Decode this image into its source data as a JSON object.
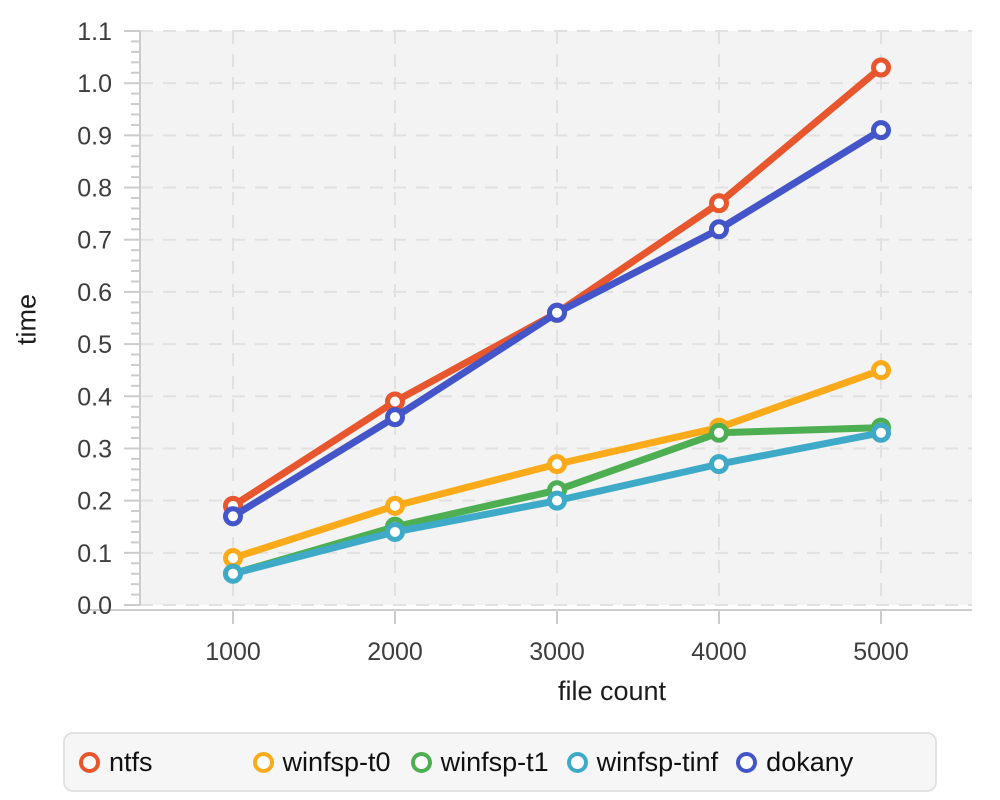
{
  "chart_data": {
    "type": "line",
    "title": "",
    "xlabel": "file count",
    "ylabel": "time",
    "x": [
      1000,
      2000,
      3000,
      4000,
      5000
    ],
    "xtick_labels": [
      "1000",
      "2000",
      "3000",
      "4000",
      "5000"
    ],
    "ylim": [
      0,
      1.1
    ],
    "ytick_step": 0.1,
    "ytick_labels": [
      "0.0",
      "0.1",
      "0.2",
      "0.3",
      "0.4",
      "0.5",
      "0.6",
      "0.7",
      "0.8",
      "0.9",
      "1.0",
      "1.1"
    ],
    "grid": "dashed",
    "legend_position": "bottom",
    "plot_bg_color": "#f3f3f3",
    "gridline_color": "#e1e1e1",
    "axis_line_color": "#cccccc",
    "tick_label_color": "#3d3d3d",
    "series": [
      {
        "name": "ntfs",
        "color": "#e7562d",
        "values": [
          0.19,
          0.39,
          0.56,
          0.77,
          1.03
        ]
      },
      {
        "name": "winfsp-t0",
        "color": "#fbaa1a",
        "values": [
          0.09,
          0.19,
          0.27,
          0.34,
          0.45
        ]
      },
      {
        "name": "winfsp-t1",
        "color": "#4daf51",
        "values": [
          0.06,
          0.15,
          0.22,
          0.33,
          0.34
        ]
      },
      {
        "name": "winfsp-tinf",
        "color": "#3faac8",
        "values": [
          0.06,
          0.14,
          0.2,
          0.27,
          0.33
        ]
      },
      {
        "name": "dokany",
        "color": "#4355c8",
        "values": [
          0.17,
          0.36,
          0.56,
          0.72,
          0.91
        ]
      }
    ]
  }
}
